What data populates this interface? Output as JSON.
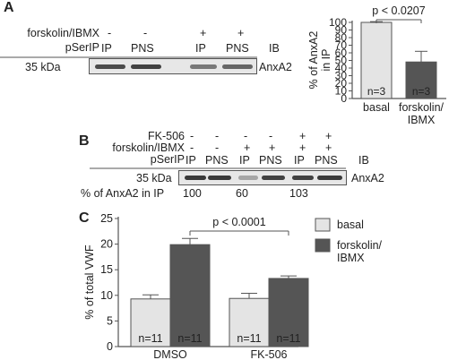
{
  "panelA": {
    "letter": "A",
    "row_labels": [
      "forskolin/IBMX",
      "pSerIP"
    ],
    "treat_marks": [
      "-",
      "-",
      "+",
      "+"
    ],
    "lane_labels": [
      "IP",
      "PNS",
      "IP",
      "PNS"
    ],
    "ib_label": "IB",
    "mw_label": "35 kDa",
    "protein_label": "AnxA2",
    "band_intensity": [
      0.85,
      0.9,
      0.6,
      0.7
    ]
  },
  "panelB": {
    "letter": "B",
    "row_labels": [
      "FK-506",
      "forskolin/IBMX",
      "pSerIP"
    ],
    "fk_marks": [
      "-",
      "-",
      "-",
      "-",
      "+",
      "+"
    ],
    "fsk_marks": [
      "-",
      "-",
      "+",
      "+",
      "+",
      "+"
    ],
    "lane_labels": [
      "IP",
      "PNS",
      "IP",
      "PNS",
      "IP",
      "PNS"
    ],
    "ib_label": "IB",
    "mw_label": "35 kDa",
    "protein_label": "AnxA2",
    "percent_label": "% of AnxA2 in IP",
    "percent_values": [
      "100",
      "60",
      "103"
    ],
    "band_intensity": [
      0.95,
      0.95,
      0.35,
      0.9,
      0.9,
      0.95
    ]
  },
  "chart_data": [
    {
      "type": "bar",
      "panel": "A",
      "categories": [
        "basal",
        "forskolin/\nIBMX"
      ],
      "values": [
        100,
        48
      ],
      "errors": [
        1,
        14
      ],
      "n_labels": [
        "n=3",
        "n=3"
      ],
      "ylabel": "% of AnxA2\nin IP",
      "ylim": [
        0,
        100
      ],
      "yticks": [
        0,
        10,
        20,
        30,
        40,
        50,
        60,
        70,
        80,
        90,
        100
      ],
      "significance": "p < 0.0207",
      "colors": [
        "#e4e4e4",
        "#555555"
      ]
    },
    {
      "type": "bar",
      "panel": "C",
      "categories": [
        "DMSO",
        "FK-506"
      ],
      "series": [
        {
          "name": "basal",
          "values": [
            9.3,
            9.4
          ],
          "errors": [
            0.8,
            1.0
          ],
          "n": [
            "n=11",
            "n=11"
          ],
          "color": "#e4e4e4"
        },
        {
          "name": "forskolin/\nIBMX",
          "values": [
            19.9,
            13.3
          ],
          "errors": [
            1.2,
            0.5
          ],
          "n": [
            "n=11",
            "n=11"
          ],
          "color": "#555555"
        }
      ],
      "ylabel": "% of total VWF",
      "ylim": [
        0,
        25
      ],
      "yticks": [
        0,
        5,
        10,
        15,
        20,
        25
      ],
      "significance": "p < 0.0001",
      "legend_position": "right"
    }
  ],
  "panelC": {
    "letter": "C"
  }
}
